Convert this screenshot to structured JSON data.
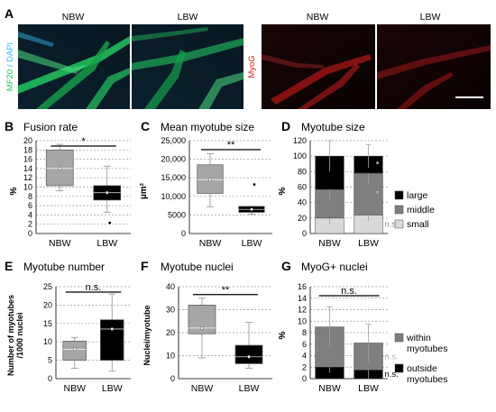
{
  "microscopy": {
    "panel_letter": "A",
    "left_labels": [
      "NBW",
      "LBW"
    ],
    "right_labels": [
      "NBW",
      "LBW"
    ],
    "left_stain_a": "MF20",
    "left_stain_sep": " / ",
    "left_stain_b": "DAPI",
    "right_stain": "MyoG",
    "colors": {
      "mf20": "#22c55e",
      "dapi": "#38bdf8",
      "myog": "#e11d1d"
    }
  },
  "chart_data": [
    {
      "id": "B",
      "type": "box",
      "title": "Fusion rate",
      "ylabel": "%",
      "ylim": [
        0,
        20
      ],
      "yticks": [
        0,
        2,
        4,
        6,
        8,
        10,
        12,
        14,
        16,
        18,
        20
      ],
      "categories": [
        "NBW",
        "LBW"
      ],
      "boxes": [
        {
          "min": 9.2,
          "q1": 10.3,
          "median": 14.0,
          "q3": 18.0,
          "max": 19.2,
          "mean": 14.0,
          "outliers": []
        },
        {
          "min": 4.6,
          "q1": 7.2,
          "median": 8.8,
          "q3": 10.3,
          "max": 14.5,
          "mean": 8.8,
          "outliers": [
            2.3
          ]
        }
      ],
      "colors": [
        "#a6a6a6",
        "#000000"
      ],
      "significance": "*"
    },
    {
      "id": "C",
      "type": "box",
      "title": "Mean myotube size",
      "ylabel": "µm²",
      "ylim": [
        0,
        25000
      ],
      "yticks": [
        0,
        5000,
        10000,
        15000,
        20000,
        25000
      ],
      "ytick_labels": [
        "0",
        "5000",
        "10,000",
        "15,000",
        "20,000",
        "25,000"
      ],
      "categories": [
        "NBW",
        "LBW"
      ],
      "boxes": [
        {
          "min": 7200,
          "q1": 10800,
          "median": 14500,
          "q3": 18500,
          "max": 21500,
          "mean": 14500,
          "outliers": []
        },
        {
          "min": 5200,
          "q1": 5700,
          "median": 6500,
          "q3": 7300,
          "max": 7300,
          "mean": 6500,
          "outliers": [
            13200
          ]
        }
      ],
      "colors": [
        "#a6a6a6",
        "#000000"
      ],
      "significance": "**"
    },
    {
      "id": "D",
      "type": "bar",
      "stacked": true,
      "title": "Myotube size",
      "ylabel": "%",
      "ylim": [
        0,
        120
      ],
      "yticks": [
        0,
        20,
        40,
        60,
        80,
        100,
        120
      ],
      "categories": [
        "NBW",
        "LBW"
      ],
      "series": [
        {
          "name": "small",
          "values": [
            20,
            24
          ],
          "color": "#d9d9d9",
          "errors": [
            8,
            8
          ]
        },
        {
          "name": "middle",
          "values": [
            37,
            54
          ],
          "color": "#7f7f7f",
          "errors": [
            12,
            14
          ]
        },
        {
          "name": "large",
          "values": [
            43,
            22
          ],
          "color": "#000000",
          "errors": [
            20,
            15
          ]
        }
      ],
      "legend_order": [
        "large",
        "middle",
        "small"
      ],
      "annotations": [
        {
          "text": "n.s.",
          "series": "small",
          "color": "#888888"
        },
        {
          "text": "*",
          "series": "middle",
          "color": "#cccccc"
        },
        {
          "text": "*",
          "series": "large",
          "color": "#ffffff"
        }
      ]
    },
    {
      "id": "E",
      "type": "box",
      "title": "Myotube number",
      "ylabel": "Number of myotubes /1000 nuclei",
      "ylim": [
        0,
        25
      ],
      "yticks": [
        0,
        5,
        10,
        15,
        20,
        25
      ],
      "categories": [
        "NBW",
        "LBW"
      ],
      "boxes": [
        {
          "min": 2.8,
          "q1": 5.0,
          "median": 8.0,
          "q3": 10.2,
          "max": 11.2,
          "mean": 8.0,
          "outliers": []
        },
        {
          "min": 2.0,
          "q1": 5.0,
          "median": 13.5,
          "q3": 16.0,
          "max": 23.0,
          "mean": 13.5,
          "outliers": []
        }
      ],
      "colors": [
        "#a6a6a6",
        "#000000"
      ],
      "significance": "n.s."
    },
    {
      "id": "F",
      "type": "box",
      "title": "Myotube nuclei",
      "ylabel": "Nuclei/myotube",
      "ylim": [
        0,
        40
      ],
      "yticks": [
        0,
        10,
        20,
        30,
        40
      ],
      "categories": [
        "NBW",
        "LBW"
      ],
      "boxes": [
        {
          "min": 9.0,
          "q1": 19.5,
          "median": 22.0,
          "q3": 32.0,
          "max": 35.0,
          "mean": 22.0,
          "outliers": []
        },
        {
          "min": 4.5,
          "q1": 6.5,
          "median": 9.5,
          "q3": 14.5,
          "max": 24.5,
          "mean": 9.5,
          "outliers": []
        }
      ],
      "colors": [
        "#a6a6a6",
        "#000000"
      ],
      "significance": "**"
    },
    {
      "id": "G",
      "type": "bar",
      "stacked": true,
      "title": "MyoG+ nuclei",
      "ylabel": "%",
      "ylim": [
        0,
        16
      ],
      "yticks": [
        0,
        2,
        4,
        6,
        8,
        10,
        12,
        14,
        16
      ],
      "categories": [
        "NBW",
        "LBW"
      ],
      "series": [
        {
          "name": "outside myotubes",
          "values": [
            2.0,
            1.5
          ],
          "color": "#000000",
          "errors": [
            1.0,
            1.5
          ]
        },
        {
          "name": "within myotubes",
          "values": [
            7.0,
            4.7
          ],
          "color": "#7f7f7f",
          "errors": [
            3.5,
            3.3
          ]
        }
      ],
      "legend_order": [
        "within myotubes",
        "outside myotubes"
      ],
      "legend_lines": {
        "within myotubes": [
          "within",
          "myotubes"
        ],
        "outside myotubes": [
          "outside",
          "myotubes"
        ]
      },
      "annotations": [
        {
          "text": "n.s.",
          "series": "within myotubes",
          "color": "#b3b3b3"
        },
        {
          "text": "n.s.",
          "series": "outside myotubes",
          "color": "#000000"
        }
      ],
      "significance": "n.s."
    }
  ]
}
